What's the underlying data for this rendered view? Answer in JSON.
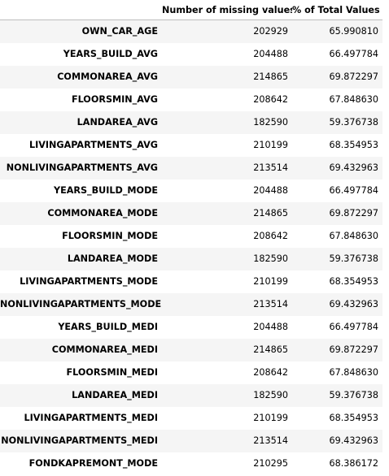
{
  "table": {
    "columns": [
      "",
      "Number of missing values",
      "% of Total Values"
    ],
    "rows": [
      {
        "name": "OWN_CAR_AGE",
        "missing": "202929",
        "percent": "65.990810"
      },
      {
        "name": "YEARS_BUILD_AVG",
        "missing": "204488",
        "percent": "66.497784"
      },
      {
        "name": "COMMONAREA_AVG",
        "missing": "214865",
        "percent": "69.872297"
      },
      {
        "name": "FLOORSMIN_AVG",
        "missing": "208642",
        "percent": "67.848630"
      },
      {
        "name": "LANDAREA_AVG",
        "missing": "182590",
        "percent": "59.376738"
      },
      {
        "name": "LIVINGAPARTMENTS_AVG",
        "missing": "210199",
        "percent": "68.354953"
      },
      {
        "name": "NONLIVINGAPARTMENTS_AVG",
        "missing": "213514",
        "percent": "69.432963"
      },
      {
        "name": "YEARS_BUILD_MODE",
        "missing": "204488",
        "percent": "66.497784"
      },
      {
        "name": "COMMONAREA_MODE",
        "missing": "214865",
        "percent": "69.872297"
      },
      {
        "name": "FLOORSMIN_MODE",
        "missing": "208642",
        "percent": "67.848630"
      },
      {
        "name": "LANDAREA_MODE",
        "missing": "182590",
        "percent": "59.376738"
      },
      {
        "name": "LIVINGAPARTMENTS_MODE",
        "missing": "210199",
        "percent": "68.354953"
      },
      {
        "name": "NONLIVINGAPARTMENTS_MODE",
        "missing": "213514",
        "percent": "69.432963"
      },
      {
        "name": "YEARS_BUILD_MEDI",
        "missing": "204488",
        "percent": "66.497784"
      },
      {
        "name": "COMMONAREA_MEDI",
        "missing": "214865",
        "percent": "69.872297"
      },
      {
        "name": "FLOORSMIN_MEDI",
        "missing": "208642",
        "percent": "67.848630"
      },
      {
        "name": "LANDAREA_MEDI",
        "missing": "182590",
        "percent": "59.376738"
      },
      {
        "name": "LIVINGAPARTMENTS_MEDI",
        "missing": "210199",
        "percent": "68.354953"
      },
      {
        "name": "NONLIVINGAPARTMENTS_MEDI",
        "missing": "213514",
        "percent": "69.432963"
      },
      {
        "name": "FONDKAPREMONT_MODE",
        "missing": "210295",
        "percent": "68.386172"
      }
    ]
  }
}
